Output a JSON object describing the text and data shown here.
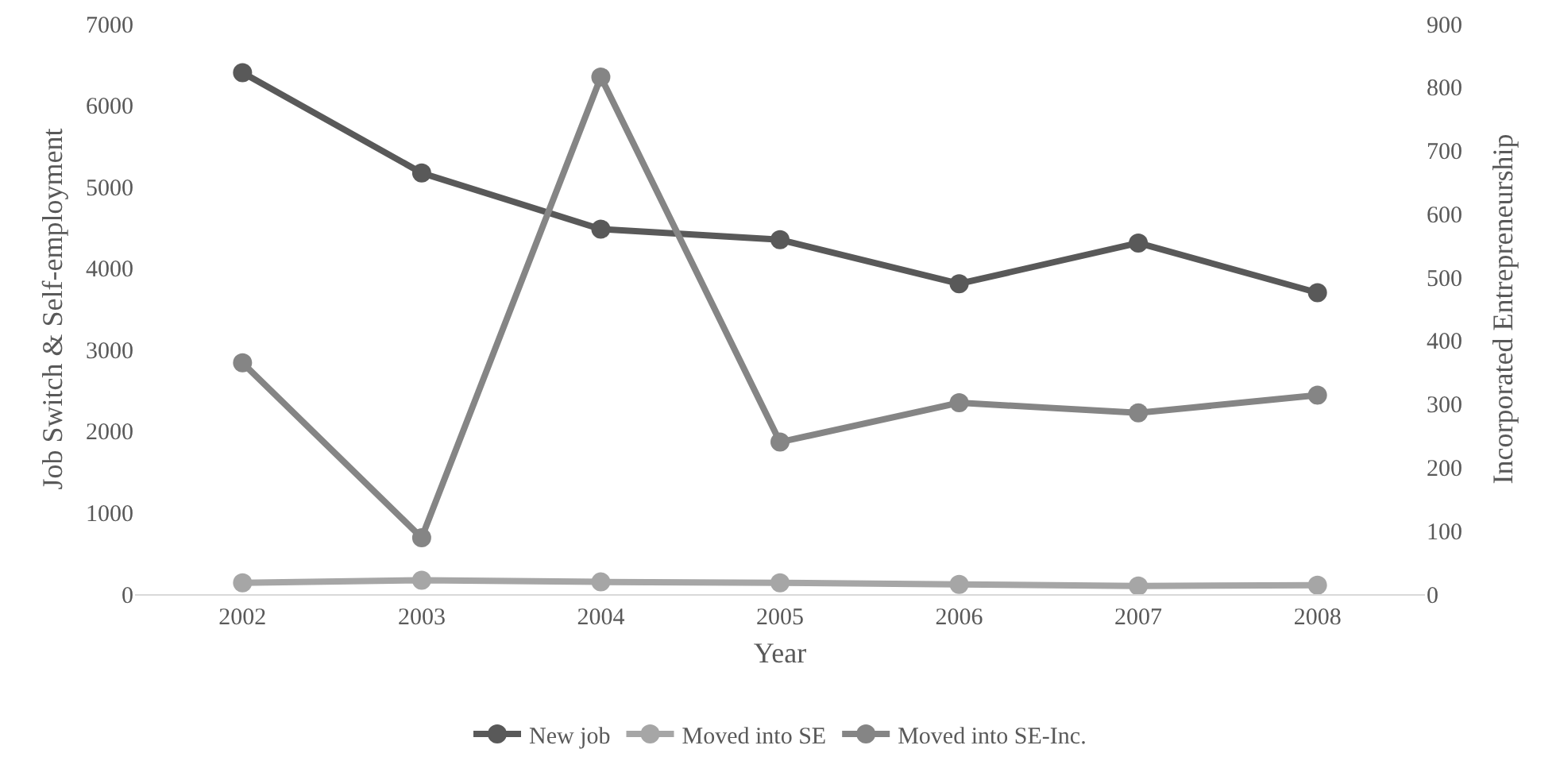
{
  "chart_data": {
    "type": "line",
    "xlabel": "Year",
    "ylabel": "Job Switch & Self-employment",
    "y2label": "Incorporated Entrepreneurship",
    "categories": [
      "2002",
      "2003",
      "2004",
      "2005",
      "2006",
      "2007",
      "2008"
    ],
    "series": [
      {
        "name": "New job",
        "color": "#595959",
        "values": [
          6400,
          5170,
          4480,
          4350,
          3810,
          4310,
          3700
        ]
      },
      {
        "name": "Moved into SE",
        "color": "#a6a6a6",
        "values": [
          140,
          170,
          150,
          140,
          120,
          100,
          110
        ]
      },
      {
        "name": "Moved into SE-Inc.",
        "color": "#858585",
        "axis": "y2",
        "values": [
          365,
          89,
          816,
          240,
          302,
          286,
          314
        ]
      }
    ],
    "ylim": [
      0,
      7000
    ],
    "yticks": [
      0,
      1000,
      2000,
      3000,
      4000,
      5000,
      6000,
      7000
    ],
    "y2lim": [
      0,
      900
    ],
    "y2ticks": [
      0,
      100,
      200,
      300,
      400,
      500,
      600,
      700,
      800,
      900
    ],
    "grid": false,
    "legend": "bottom",
    "marker": "circle",
    "line_style": "solid"
  }
}
